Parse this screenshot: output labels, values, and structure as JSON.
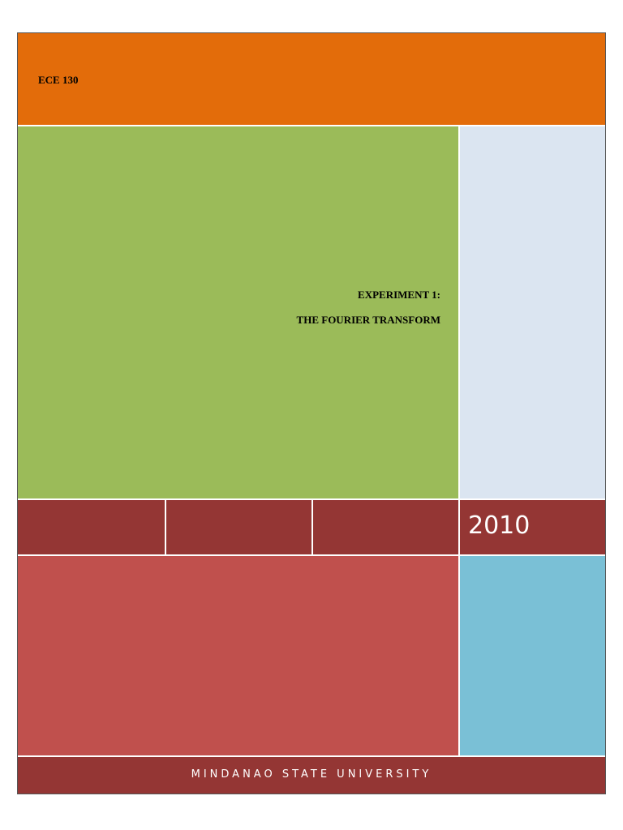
{
  "header": {
    "course": "ECE 130"
  },
  "title": {
    "line1": "EXPERIMENT 1:",
    "line2": "THE FOURIER TRANSFORM"
  },
  "year": "2010",
  "footer": {
    "institution": "MINDANAO STATE UNIVERSITY"
  }
}
